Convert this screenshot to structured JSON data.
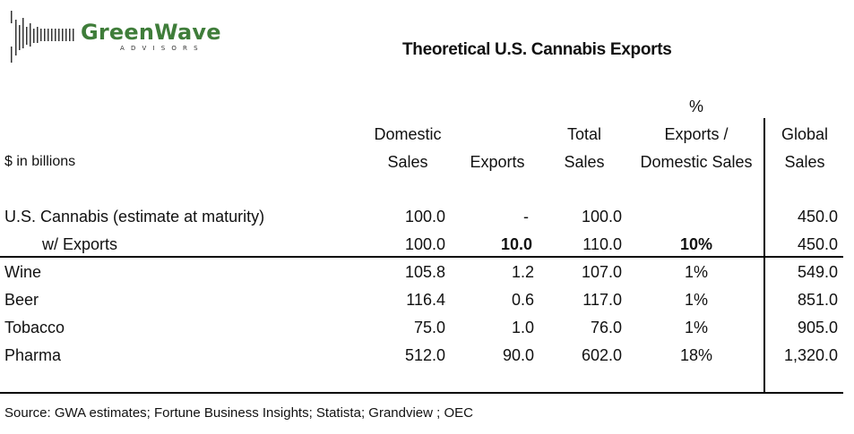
{
  "logo": {
    "name": "GreenWave",
    "sub": "ADVISORS"
  },
  "title": "Theoretical U.S. Cannabis Exports",
  "units": "$ in billions",
  "headers": {
    "domestic": [
      "Domestic",
      "Sales"
    ],
    "exports": [
      "Exports"
    ],
    "total": [
      "Total",
      "Sales"
    ],
    "pct": [
      "%",
      "Exports /",
      "Domestic Sales"
    ],
    "global": [
      "Global",
      "Sales"
    ]
  },
  "rows": [
    {
      "label": "U.S. Cannabis  (estimate at maturity)",
      "domestic": "100.0",
      "exports": "-",
      "total": "100.0",
      "pct": "",
      "global": "450.0"
    },
    {
      "label": "w/ Exports",
      "domestic": "100.0",
      "exports": "10.0",
      "total": "110.0",
      "pct": "10%",
      "global": "450.0"
    },
    {
      "label": "Wine",
      "domestic": "105.8",
      "exports": "1.2",
      "total": "107.0",
      "pct": "1%",
      "global": "549.0"
    },
    {
      "label": "Beer",
      "domestic": "116.4",
      "exports": "0.6",
      "total": "117.0",
      "pct": "1%",
      "global": "851.0"
    },
    {
      "label": "Tobacco",
      "domestic": "75.0",
      "exports": "1.0",
      "total": "76.0",
      "pct": "1%",
      "global": "905.0"
    },
    {
      "label": "Pharma",
      "domestic": "512.0",
      "exports": "90.0",
      "total": "602.0",
      "pct": "18%",
      "global": "1,320.0"
    }
  ],
  "source": "Source: GWA estimates; Fortune Business Insights;  Statista; Grandview ; OEC",
  "colors": {
    "logo_green": "#3f7d3a"
  }
}
